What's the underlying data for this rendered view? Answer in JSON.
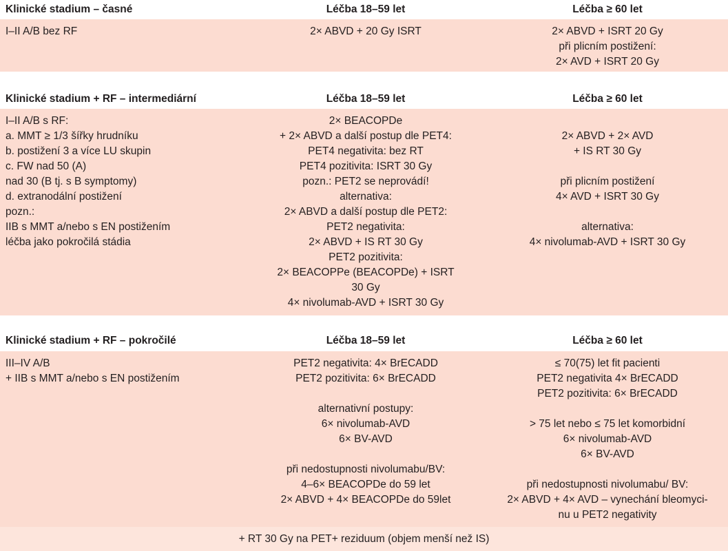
{
  "sections": [
    {
      "header": [
        "Klinické stadium – časné",
        "Léčba 18–59 let",
        "Léčba ≥ 60 let"
      ],
      "cells": [
        [
          [
            "I–II A/B bez RF"
          ]
        ],
        [
          [
            "2× ABVD + 20 Gy ISRT"
          ]
        ],
        [
          [
            "2× ABVD + ISRT 20 Gy",
            "při plicním postižení:",
            "2× AVD + ISRT 20 Gy"
          ]
        ]
      ]
    },
    {
      "header": [
        "Klinické stadium + RF – intermediární",
        "Léčba 18–59 let",
        "Léčba ≥ 60 let"
      ],
      "cells": [
        [
          [
            "I–II A/B s RF:",
            "a. MMT ≥ 1/3 šířky hrudníku",
            "b. postižení 3 a více LU skupin",
            "c. FW nad 50 (A)",
            "nad 30 (B tj. s B symptomy)",
            "d. extranodální postižení",
            "pozn.:",
            "IIB s MMT a/nebo s EN postižením",
            "léčba jako pokročilá stádia"
          ]
        ],
        [
          [
            "2× BEACOPDe",
            "+ 2× ABVD a další postup dle PET4:",
            "PET4 negativita: bez RT",
            "PET4 pozitivita: ISRT 30 Gy",
            "pozn.: PET2 se neprovádí!",
            "alternativa:",
            "2× ABVD a další postup dle PET2:",
            "PET2 negativita:",
            "2× ABVD + IS RT 30 Gy",
            "PET2 pozitivita:",
            "2× BEACOPPe (BEACOPDe) + ISRT",
            "30 Gy",
            "4× nivolumab-AVD + ISRT 30 Gy"
          ]
        ],
        [
          [
            "2× ABVD + 2× AVD",
            "+ IS RT 30 Gy"
          ],
          [
            "při plicním postižení",
            "4× AVD + ISRT 30 Gy"
          ],
          [
            "alternativa:",
            "4× nivolumab-AVD + ISRT 30 Gy"
          ]
        ]
      ]
    },
    {
      "header": [
        "Klinické stadium + RF – pokročilé",
        "Léčba 18–59 let",
        "Léčba ≥ 60 let"
      ],
      "cells": [
        [
          [
            "III–IV A/B",
            "+ IIB s MMT a/nebo s EN postižením"
          ]
        ],
        [
          [
            "PET2 negativita: 4× BrECADD",
            "PET2 pozitivita: 6× BrECADD"
          ],
          [
            "alternativní postupy:",
            "6× nivolumab-AVD",
            "6× BV-AVD"
          ],
          [
            "při nedostupnosti nivolumabu/BV:",
            "4–6× BEACOPDe do 59 let",
            "2× ABVD + 4× BEACOPDe do 59let"
          ]
        ],
        [
          [
            "≤ 70(75) let fit pacienti",
            "PET2 negativita 4× BrECADD",
            "PET2 pozitivita: 6× BrECADD"
          ],
          [
            "> 75 let nebo ≤ 75 let komorbidní",
            "6× nivolumab-AVD",
            "6× BV-AVD"
          ],
          [
            "při nedostupnosti nivolumabu/ BV:",
            "2× ABVD + 4× AVD – vynechání bleomyci-",
            "nu u PET2 negativity"
          ]
        ]
      ]
    }
  ],
  "footer": "+ RT 30 Gy na PET+ reziduum (objem menší než IS)"
}
